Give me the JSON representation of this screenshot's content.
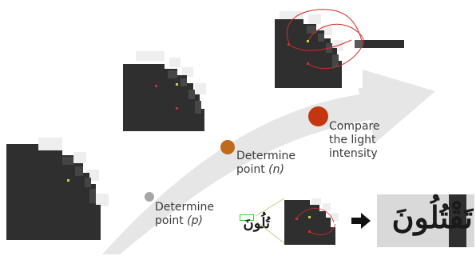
{
  "steps": [
    {
      "line1": "Determine",
      "line2_prefix": "point ",
      "line2_var": "(p)",
      "dot_color": "#a6a6a6"
    },
    {
      "line1": "Determine",
      "line2_prefix": "point ",
      "line2_var": "(n)",
      "dot_color": "#c06a1c"
    },
    {
      "line1": "Compare",
      "line2": "the light",
      "line3": "intensity",
      "dot_color": "#c4360f"
    }
  ],
  "word_small": "تُلُونَ",
  "word_large": "تَقْتُلُونَ",
  "result_arrow_icon": "right-arrow-icon",
  "colors": {
    "pixel_dark": "#2f2f2f",
    "curve_arrow": "#e3e3e3",
    "trace_red": "#d12b2b",
    "highlight_green": "#33cc33"
  }
}
